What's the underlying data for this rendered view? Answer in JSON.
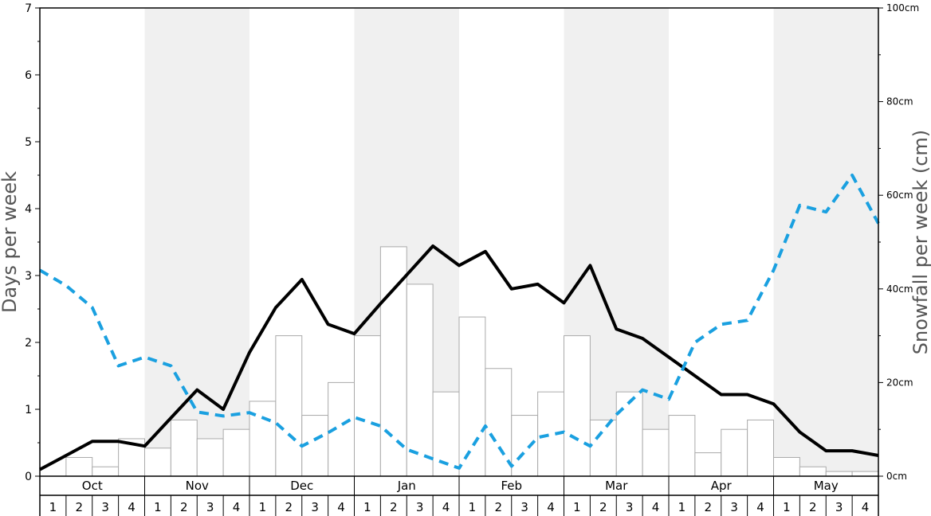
{
  "chart_data": {
    "type": "bar+line",
    "title": "",
    "ylabel_left": "Days per week",
    "ylabel_right": "Snowfall per week (cm)",
    "ylim_left": [
      0,
      7
    ],
    "ylim_right": [
      0,
      100
    ],
    "yticks_left": [
      "0",
      "1",
      "2",
      "3",
      "4",
      "5",
      "6",
      "7"
    ],
    "yticks_right": [
      "0cm",
      "20cm",
      "40cm",
      "60cm",
      "80cm",
      "100cm"
    ],
    "months": [
      "Oct",
      "Nov",
      "Dec",
      "Jan",
      "Feb",
      "Mar",
      "Apr",
      "May"
    ],
    "weeks": [
      "1",
      "2",
      "3",
      "4"
    ],
    "shaded_months": [
      "Nov",
      "Jan",
      "Mar",
      "May"
    ],
    "snowfall_bars_cm": [
      0,
      4,
      2,
      8,
      6,
      12,
      8,
      10,
      16,
      30,
      13,
      20,
      30,
      49,
      41,
      18,
      34,
      23,
      13,
      18,
      30,
      12,
      18,
      10,
      13,
      5,
      10,
      12,
      4,
      2,
      1,
      1
    ],
    "series": [
      {
        "name": "",
        "style": "solid",
        "color": "#000000",
        "values": [
          0.1,
          0.31,
          0.52,
          0.52,
          0.45,
          0.87,
          1.29,
          1.0,
          1.85,
          2.52,
          2.94,
          2.27,
          2.13,
          2.58,
          3.01,
          3.44,
          3.15,
          3.36,
          2.8,
          2.87,
          2.59,
          3.15,
          2.2,
          2.06,
          1.78,
          1.5,
          1.22,
          1.22,
          1.08,
          0.66,
          0.38,
          0.38
        ]
      },
      {
        "name": "",
        "style": "dashed",
        "color": "#1aa0e0",
        "values": [
          3.08,
          2.85,
          2.52,
          1.65,
          1.78,
          1.65,
          0.96,
          0.9,
          0.95,
          0.8,
          0.45,
          0.65,
          0.88,
          0.75,
          0.4,
          0.26,
          0.12,
          0.75,
          0.15,
          0.58,
          0.66,
          0.45,
          0.92,
          1.29,
          1.15,
          2.0,
          2.27,
          2.33,
          3.08,
          4.05,
          3.95,
          4.5
        ]
      }
    ],
    "tail_values": {
      "solid": 0.31,
      "dashed": 3.78
    },
    "grid": false
  }
}
